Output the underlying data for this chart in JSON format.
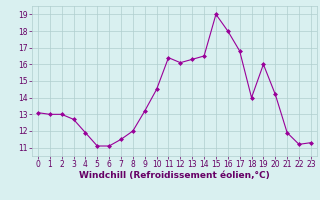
{
  "x": [
    0,
    1,
    2,
    3,
    4,
    5,
    6,
    7,
    8,
    9,
    10,
    11,
    12,
    13,
    14,
    15,
    16,
    17,
    18,
    19,
    20,
    21,
    22,
    23
  ],
  "y": [
    13.1,
    13.0,
    13.0,
    12.7,
    11.9,
    11.1,
    11.1,
    11.5,
    12.0,
    13.2,
    14.5,
    16.4,
    16.1,
    16.3,
    16.5,
    19.0,
    18.0,
    16.8,
    14.0,
    16.0,
    14.2,
    11.9,
    11.2,
    11.3
  ],
  "line_color": "#990099",
  "marker": "D",
  "marker_size": 2,
  "bg_color": "#d9f0f0",
  "grid_color": "#b0cece",
  "xlabel": "Windchill (Refroidissement éolien,°C)",
  "xlabel_color": "#660066",
  "xlabel_fontsize": 6.5,
  "tick_color": "#660066",
  "tick_fontsize": 5.5,
  "ylim": [
    10.5,
    19.5
  ],
  "xlim": [
    -0.5,
    23.5
  ],
  "yticks": [
    11,
    12,
    13,
    14,
    15,
    16,
    17,
    18,
    19
  ],
  "xticks": [
    0,
    1,
    2,
    3,
    4,
    5,
    6,
    7,
    8,
    9,
    10,
    11,
    12,
    13,
    14,
    15,
    16,
    17,
    18,
    19,
    20,
    21,
    22,
    23
  ]
}
